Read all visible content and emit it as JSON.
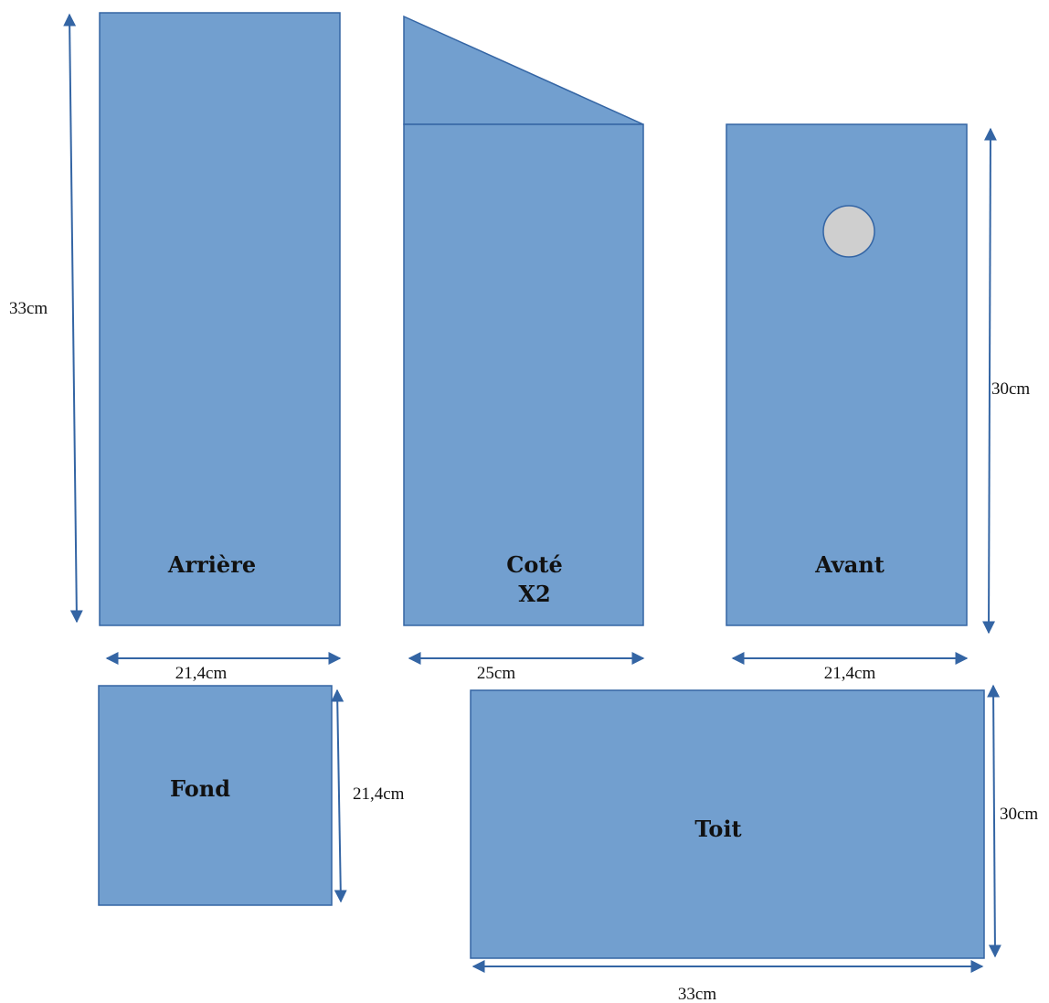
{
  "colors": {
    "panel_fill": "#729fcf",
    "panel_stroke": "#3465a4",
    "hole_fill": "#cfcfcf",
    "arrow": "#3465a4",
    "text": "#111111"
  },
  "panels": {
    "arriere": {
      "label": "Arrière"
    },
    "cote": {
      "label_line1": "Coté",
      "label_line2": "X2"
    },
    "avant": {
      "label": "Avant"
    },
    "fond": {
      "label": "Fond"
    },
    "toit": {
      "label": "Toit"
    }
  },
  "dimensions": {
    "arriere_height": "33cm",
    "arriere_width": "21,4cm",
    "cote_width": "25cm",
    "avant_height": "30cm",
    "avant_width": "21,4cm",
    "fond_height": "21,4cm",
    "toit_height": "30cm",
    "toit_width": "33cm"
  }
}
